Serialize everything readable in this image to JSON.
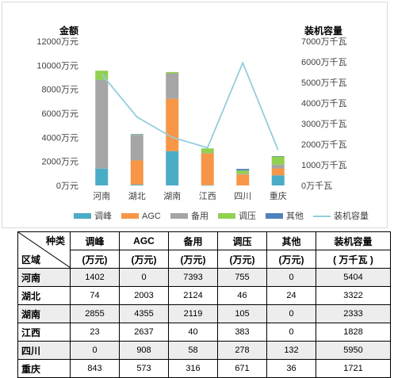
{
  "chart_data": {
    "type": "bar",
    "stacked": true,
    "left_axis_title": "金额",
    "right_axis_title": "装机容量",
    "left_ticks": [
      "0万元",
      "2000万元",
      "4000万元",
      "6000万元",
      "8000万元",
      "10000万元",
      "12000万元"
    ],
    "right_ticks": [
      "0万千瓦",
      "1000万千瓦",
      "2000万千瓦",
      "3000万千瓦",
      "4000万千瓦",
      "5000万千瓦",
      "6000万千瓦",
      "7000万千瓦"
    ],
    "ylim_left": [
      0,
      12000
    ],
    "ylim_right": [
      0,
      7000
    ],
    "categories": [
      "河南",
      "湖北",
      "湖南",
      "江西",
      "四川",
      "重庆"
    ],
    "series": [
      {
        "name": "调峰",
        "color": "#4bacc6",
        "values": [
          1402,
          74,
          2855,
          23,
          0,
          843
        ]
      },
      {
        "name": "AGC",
        "color": "#f79646",
        "values": [
          0,
          2003,
          4355,
          2637,
          908,
          573
        ]
      },
      {
        "name": "备用",
        "color": "#a5a5a5",
        "values": [
          7393,
          2124,
          2119,
          40,
          58,
          316
        ]
      },
      {
        "name": "调压",
        "color": "#92d050",
        "values": [
          755,
          46,
          105,
          383,
          278,
          671
        ]
      },
      {
        "name": "其他",
        "color": "#4f81bd",
        "values": [
          0,
          24,
          0,
          0,
          132,
          36
        ]
      }
    ],
    "line": {
      "name": "装机容量",
      "color": "#93cddd",
      "values": [
        5404,
        3322,
        2333,
        1828,
        5950,
        1721
      ]
    },
    "legend_position": "bottom"
  },
  "table": {
    "header_top": "种类",
    "header_bottom": "区域",
    "columns": [
      {
        "name": "调峰",
        "unit": "(万元)"
      },
      {
        "name": "AGC",
        "unit": "(万元)"
      },
      {
        "name": "备用",
        "unit": "(万元)"
      },
      {
        "name": "调压",
        "unit": "(万元)"
      },
      {
        "name": "其他",
        "unit": "(万元)"
      },
      {
        "name": "装机容量",
        "unit": "( 万千瓦 )"
      }
    ],
    "rows": [
      {
        "region": "河南",
        "cells": [
          "1402",
          "0",
          "7393",
          "755",
          "0",
          "5404"
        ]
      },
      {
        "region": "湖北",
        "cells": [
          "74",
          "2003",
          "2124",
          "46",
          "24",
          "3322"
        ]
      },
      {
        "region": "湖南",
        "cells": [
          "2855",
          "4355",
          "2119",
          "105",
          "0",
          "2333"
        ]
      },
      {
        "region": "江西",
        "cells": [
          "23",
          "2637",
          "40",
          "383",
          "0",
          "1828"
        ]
      },
      {
        "region": "四川",
        "cells": [
          "0",
          "908",
          "58",
          "278",
          "132",
          "5950"
        ]
      },
      {
        "region": "重庆",
        "cells": [
          "843",
          "573",
          "316",
          "671",
          "36",
          "1721"
        ]
      }
    ]
  }
}
